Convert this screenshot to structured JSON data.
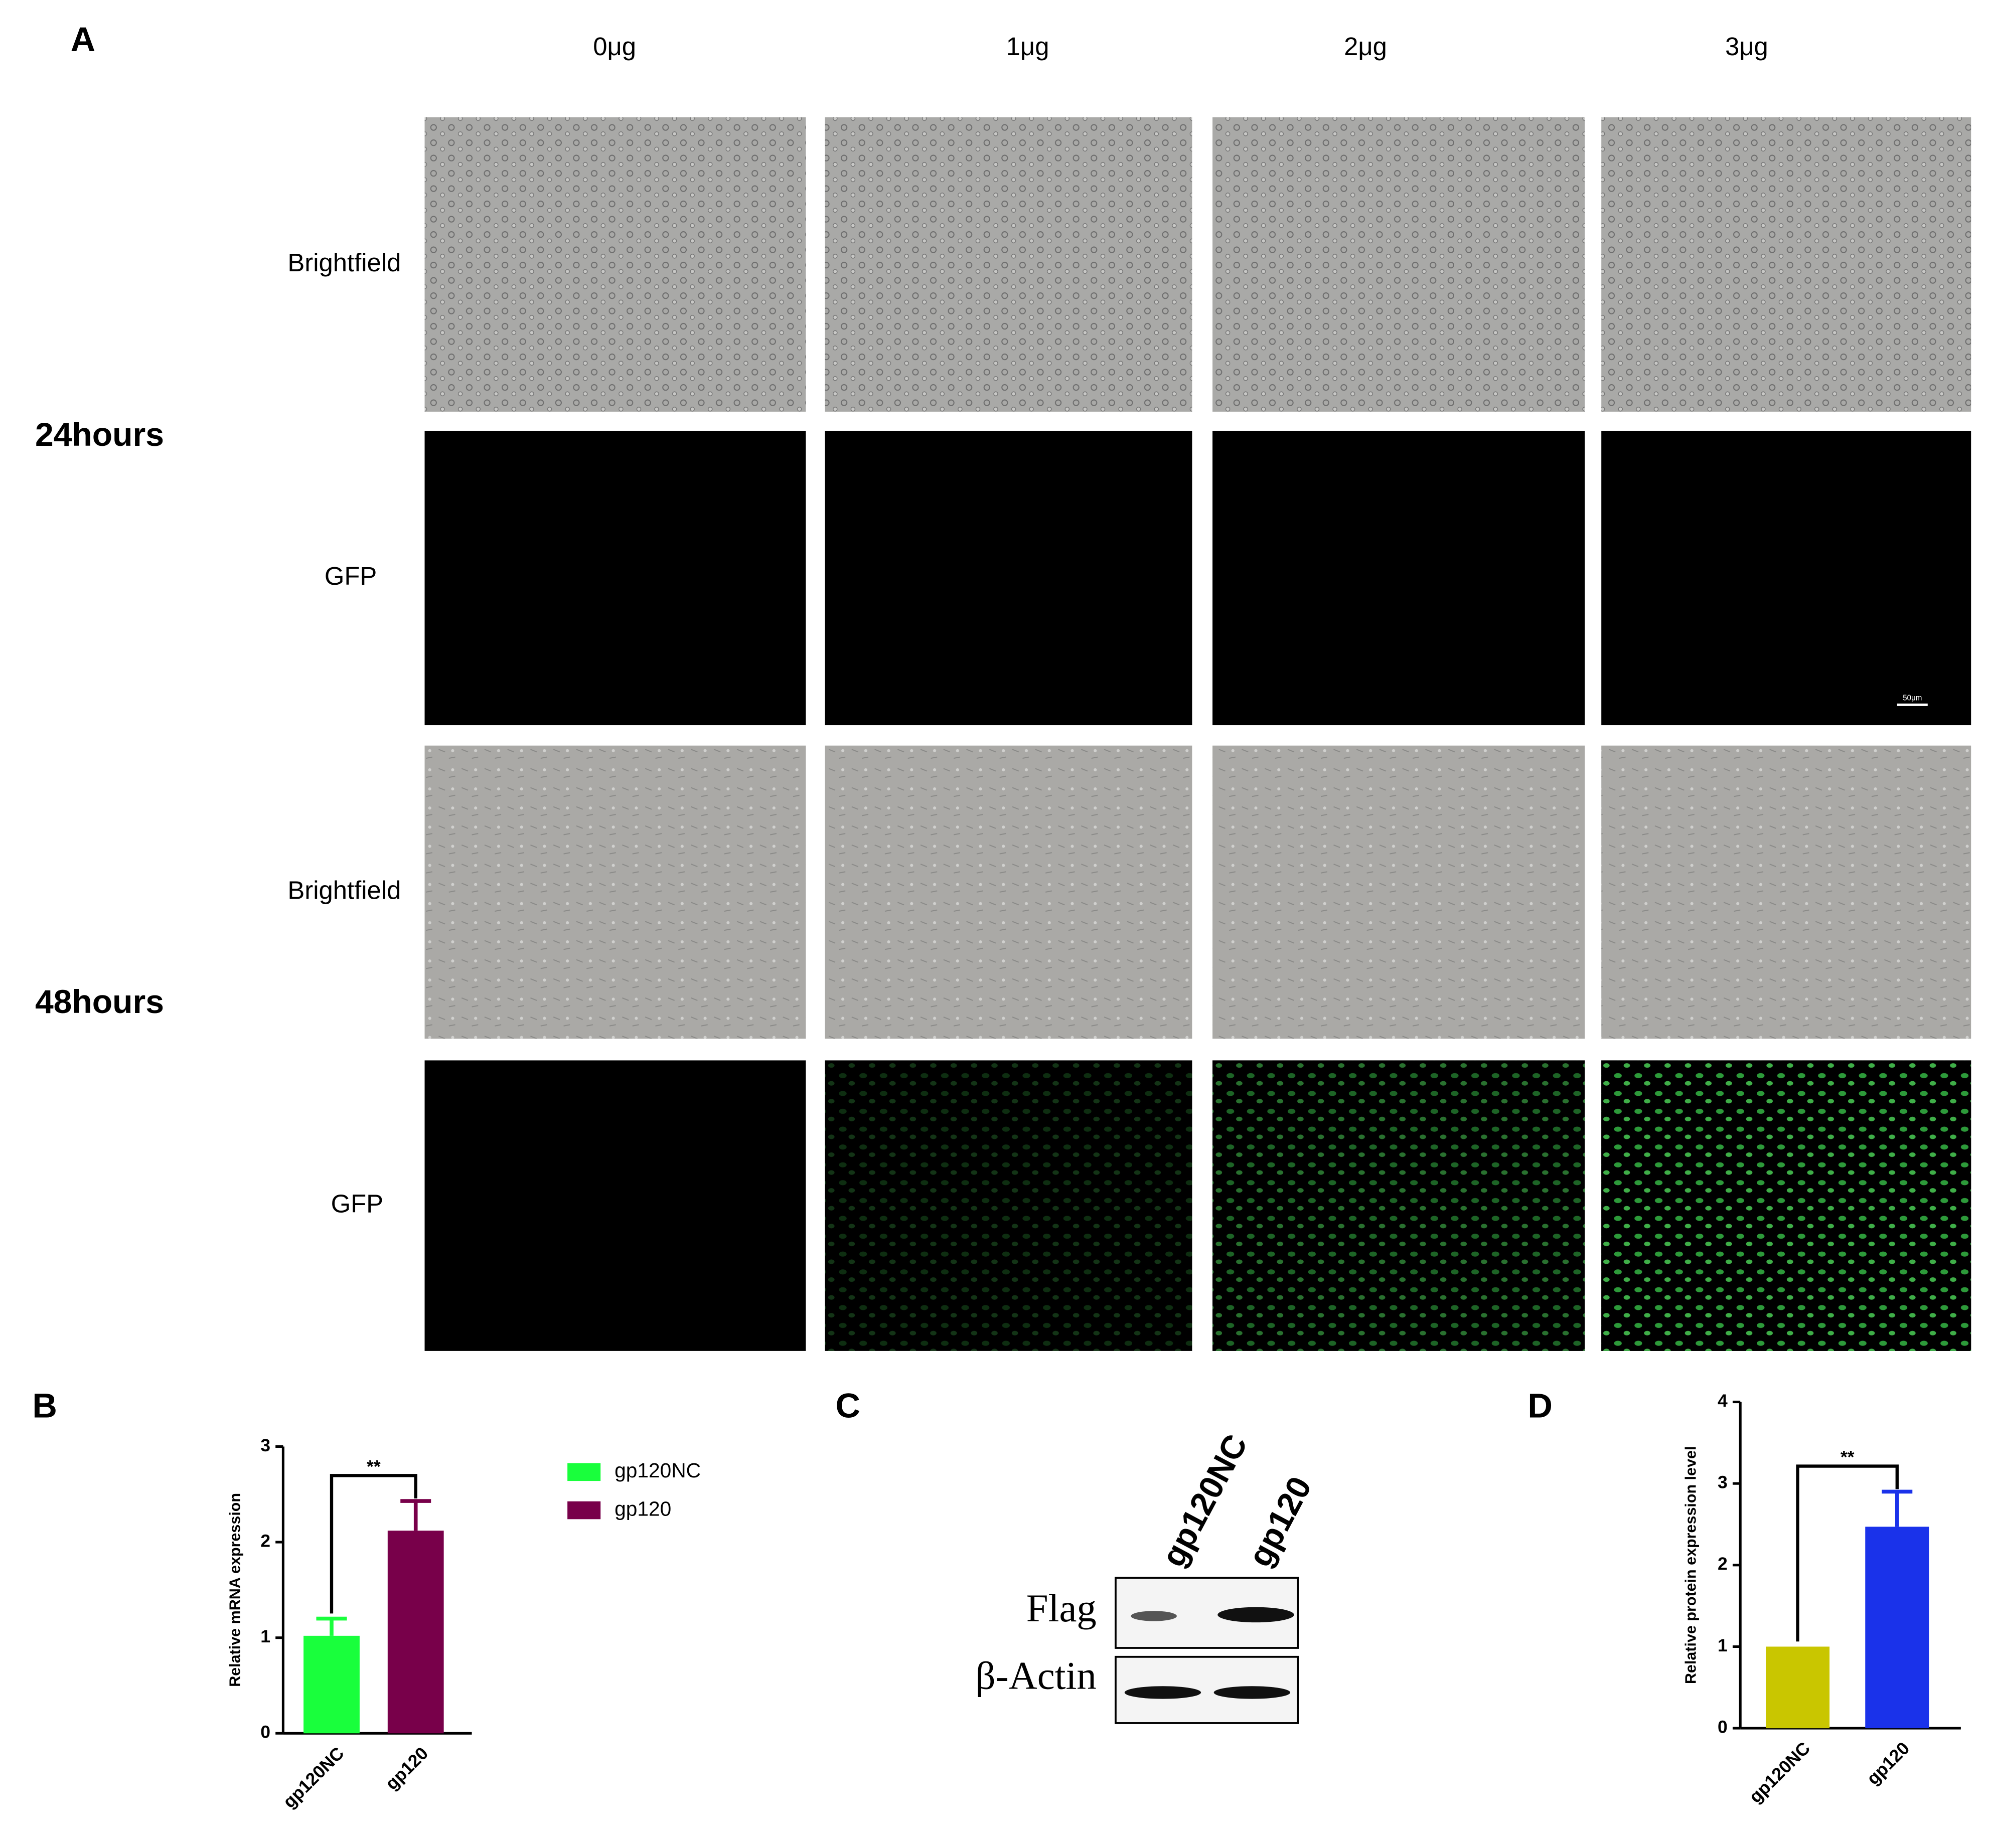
{
  "panel_a": {
    "label": "A",
    "columns": [
      "0μg",
      "1μg",
      "2μg",
      "3μg"
    ],
    "rows": [
      {
        "time": "24hours",
        "channels": [
          "Brightfield",
          "GFP"
        ]
      },
      {
        "time": "48hours",
        "channels": [
          "Brightfield",
          "GFP"
        ]
      }
    ],
    "scale_bar": "50μm"
  },
  "panel_c": {
    "label": "C",
    "lanes": [
      "gp120NC",
      "gp120"
    ],
    "bands": [
      "Flag",
      "β-Actin"
    ]
  },
  "chart_data": [
    {
      "type": "bar",
      "panel_label": "B",
      "y_label": "Relative mRNA expression",
      "categories": [
        "gp120NC",
        "gp120"
      ],
      "values": [
        1.02,
        2.12
      ],
      "errors": [
        0.18,
        0.31
      ],
      "colors": [
        "#19ff3c",
        "#78004a"
      ],
      "ylim": [
        0,
        3
      ],
      "yticks": [
        0,
        1,
        2,
        3
      ],
      "annotation": "**",
      "legend": true
    },
    {
      "type": "bar",
      "panel_label": "D",
      "y_label": "Relative  protein expression level",
      "categories": [
        "gp120NC",
        "gp120"
      ],
      "values": [
        1.0,
        2.47
      ],
      "errors": [
        0,
        0.43
      ],
      "colors": [
        "#c9c600",
        "#1a32ea"
      ],
      "ylim": [
        0,
        4
      ],
      "yticks": [
        0,
        1,
        2,
        3,
        4
      ],
      "annotation": "**",
      "legend": false
    }
  ]
}
